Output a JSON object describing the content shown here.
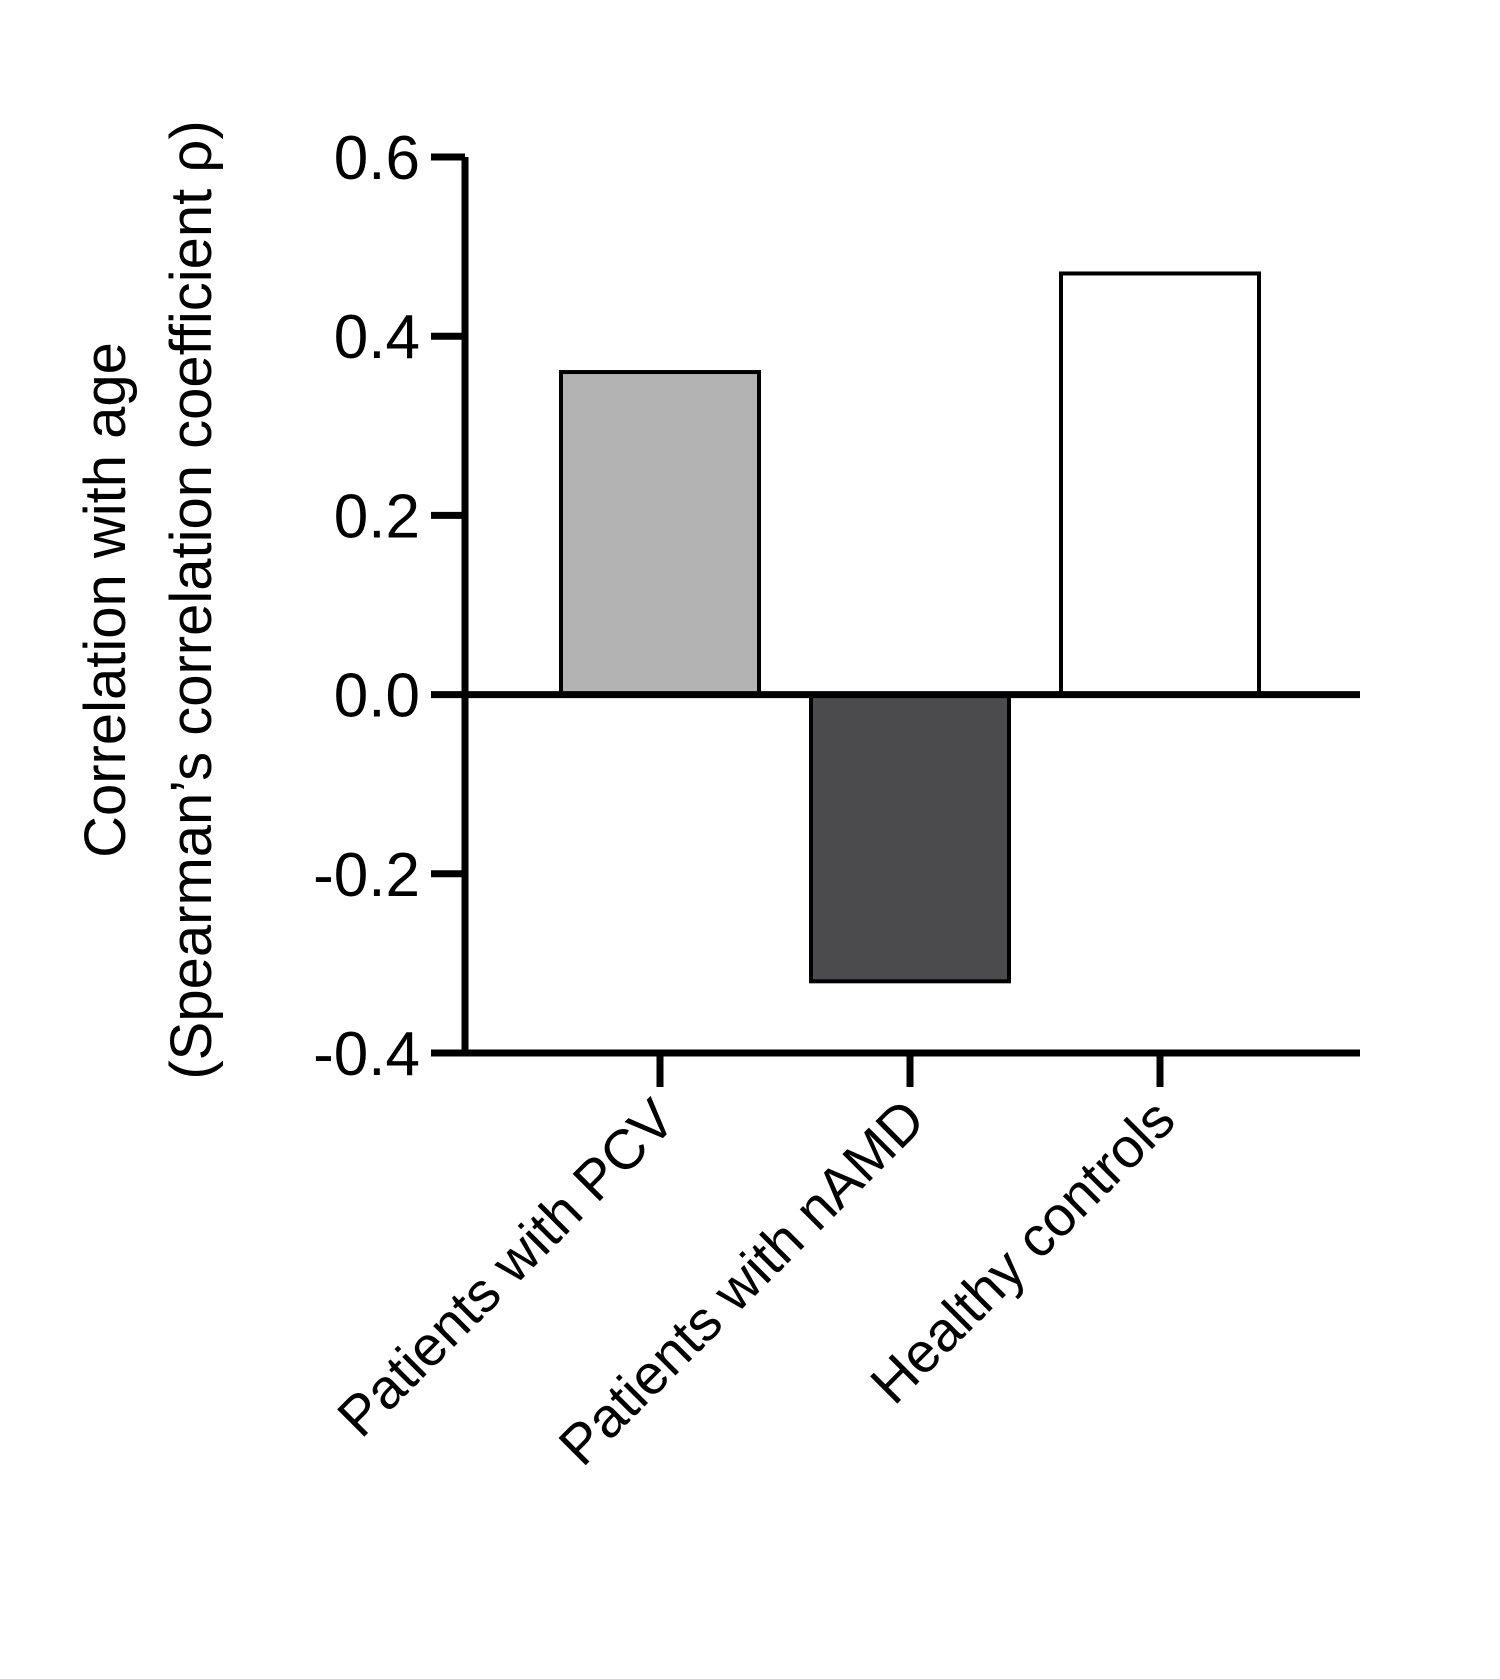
{
  "chart_data": {
    "type": "bar",
    "title": "",
    "xlabel": "",
    "ylabel_lines": [
      "Correlation with age",
      "(Spearman’s correlation coefficient ρ)"
    ],
    "categories": [
      "Patients with PCV",
      "Patients with nAMD",
      "Healthy controls"
    ],
    "values": [
      0.36,
      -0.32,
      0.47
    ],
    "colors": [
      "#b3b3b3",
      "#4b4a4d",
      "#ffffff"
    ],
    "ylim": [
      -0.4,
      0.6
    ],
    "yticks": [
      "-0.4",
      "-0.2",
      "0.0",
      "0.2",
      "0.4",
      "0.6"
    ],
    "grid": false,
    "legend": "none"
  }
}
